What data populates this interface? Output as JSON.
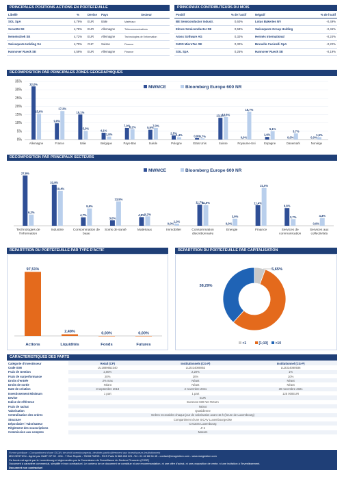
{
  "positions": {
    "title": "PRINCIPALES POSITIONS ACTIONS EN PORTEFEUILLE",
    "headers": [
      "Libellé",
      "%",
      "Devise",
      "Pays",
      "Secteur"
    ],
    "rows": [
      {
        "name": "SOL SpA",
        "pct": "4,79%",
        "cur": "EUR",
        "country": "Italie",
        "sector": "Matériaux"
      },
      {
        "name": "Scout24 SE",
        "pct": "4,78%",
        "cur": "EUR",
        "country": "Allemagne",
        "sector": "Télécommunications"
      },
      {
        "name": "Nemetschek SE",
        "pct": "4,72%",
        "cur": "EUR",
        "country": "Allemagne",
        "sector": "Technologies de l'information"
      },
      {
        "name": "Swissquote Holding SA",
        "pct": "4,70%",
        "cur": "CHF",
        "country": "Suisse",
        "sector": "Finance"
      },
      {
        "name": "Hannover Rueck SE",
        "pct": "4,59%",
        "cur": "EUR",
        "country": "Allemagne",
        "sector": "Finance"
      }
    ]
  },
  "contributors": {
    "title": "PRINCIPAUX CONTRIBUTEURS DU MOIS",
    "headers": [
      "Positif",
      "% de l'actif",
      "Négatif",
      "% de l'actif"
    ],
    "rows": [
      {
        "pos": "BE Semiconductor Industr.",
        "pos_pct": "0,60%",
        "neg": "Lotus Bakeries NV",
        "neg_pct": "-0,49%"
      },
      {
        "pos": "Elmos Semiconductor SE",
        "pos_pct": "0,58%",
        "neg": "Swissquote Group Holding",
        "neg_pct": "-0,46%"
      },
      {
        "pos": "Atoss Software AG",
        "pos_pct": "0,32%",
        "neg": "Hermès International",
        "neg_pct": "-0,24%"
      },
      {
        "pos": "SUSS MicroTec SE",
        "pos_pct": "0,32%",
        "neg": "Brunello Cucinelli SpA",
        "neg_pct": "-0,22%"
      },
      {
        "pos": "SOL SpA",
        "pos_pct": "0,25%",
        "neg": "Hannover Rueck SE",
        "neg_pct": "-0,19%"
      }
    ]
  },
  "geo": {
    "title": "DECOMPOSITION PAR PRINCIPALES ZONES GEOGRAPHIQUES"
  },
  "sect": {
    "title": "DECOMPOSITION PAR PRINCIPAUX SECTEURS"
  },
  "actif": {
    "title": "REPARTITION DU PORTEFEUILLE PAR TYPE D'ACTIF"
  },
  "capi": {
    "title": "REPARTITION DU PORTEFEUILLE PAR CAPITALISATION"
  },
  "chart_data": [
    {
      "type": "bar",
      "categories": [
        "Allemagne",
        "France",
        "Italie",
        "Belgique",
        "Pays-Bas",
        "Suède",
        "Pologne",
        "Etats Unis",
        "Suisse",
        "Royaume-Uni",
        "Espagne",
        "Danemark",
        "Norvège"
      ],
      "series": [
        {
          "name": "MWMCE",
          "values": [
            32.0,
            9.8,
            15.1,
            4.1,
            7.0,
            5.9,
            2.5,
            0.9,
            13.1,
            0.0,
            1.6,
            0.0,
            0.0
          ],
          "color": "#2f4f96"
        },
        {
          "name": "Bloomberg Europe 600 NR",
          "values": [
            15.6,
            17.2,
            5.3,
            1.8,
            6.2,
            7.0,
            1.4,
            0.7,
            13.6,
            16.7,
            5.1,
            3.7,
            1.5
          ],
          "color": "#b9cfec"
        }
      ],
      "labels_mwmce": [
        "32,0%",
        "9,8%",
        "15,1%",
        "4,1%",
        "7,0%",
        "5,9%",
        "2,5%",
        "0,9%",
        "13,1%",
        "0,0%",
        "1,6%",
        "0,0%",
        "0,0%"
      ],
      "labels_bench": [
        "15,6%",
        "17,2%",
        "5,3%",
        "1,8%",
        "6,2%",
        "7,0%",
        "1,4%",
        "0,7%",
        "13,6%",
        "16,7%",
        "5,1%",
        "3,7%",
        "1,5%"
      ],
      "yticks": [
        "35%",
        "30%",
        "25%",
        "20%",
        "15%",
        "10%",
        "5%",
        "0%"
      ],
      "ylim": [
        0,
        35
      ]
    },
    {
      "type": "bar",
      "categories": [
        "Technologies de l'information",
        "Industrie",
        "Consommation de base",
        "Soins de santé",
        "Matériaux",
        "Immobilier",
        "Consommation discrétionnaire",
        "Energie",
        "Finance",
        "Services de communication",
        "Services aux collectivités"
      ],
      "series": [
        {
          "name": "MWMCE",
          "values": [
            27.9,
            22.8,
            4.7,
            3.0,
            4.8,
            0.0,
            11.7,
            0.0,
            11.4,
            9.8,
            0.0
          ],
          "color": "#2f4f96"
        },
        {
          "name": "Bloomberg Europe 600 NR",
          "values": [
            6.2,
            19.4,
            9.6,
            13.5,
            5.2,
            1.2,
            11.5,
            3.9,
            21.0,
            3.7,
            4.3
          ],
          "color": "#b9cfec"
        }
      ],
      "labels_mwmce": [
        "27,9%",
        "22,8%",
        "4,7%",
        "3,0%",
        "4,8%",
        "0,0%",
        "11,7%",
        "0,0%",
        "11,4%",
        "9,8%",
        "0,0%"
      ],
      "labels_bench": [
        "6,2%",
        "19,4%",
        "9,6%",
        "13,5%",
        "5,2%",
        "1,2%",
        "11,5%",
        "3,9%",
        "21,0%",
        "3,7%",
        "4,3%"
      ],
      "ylim": [
        0,
        30
      ]
    },
    {
      "type": "bar",
      "categories": [
        "Actions",
        "Liquidités",
        "Fonds",
        "Futures"
      ],
      "values": [
        97.51,
        2.49,
        0.0,
        0.0
      ],
      "labels": [
        "97,51%",
        "2,49%",
        "0,00%",
        "0,00%"
      ],
      "color": "#e46a1c",
      "ylim": [
        0,
        100
      ]
    },
    {
      "type": "pie",
      "donut": true,
      "categories": [
        "<1",
        "[1;10]",
        ">10"
      ],
      "values": [
        5.65,
        56.06,
        38.29
      ],
      "labels": [
        "5,65%",
        "56,06%",
        "38,29%"
      ],
      "colors": [
        "#c9c9c9",
        "#e46a1c",
        "#1f63b5"
      ]
    }
  ],
  "characteristics": {
    "title": "CARACTERISTIQUES DES PARTS",
    "columns": [
      "Retail (CP)",
      "Institutionnels (CG-P)",
      "Institutionnel (CG-P)"
    ],
    "rows": [
      {
        "label": "Catégorie d'investisseur",
        "vals": [
          "Retail (CP)",
          "Institutionnels (CG-P)",
          "Institutionnel (CG-P)"
        ]
      },
      {
        "label": "Code ISIN",
        "vals": [
          "LU1889652340",
          "LU2314080852",
          "LU2314080936"
        ]
      },
      {
        "label": "Frais de Gestion",
        "vals": [
          "2,00%",
          "2,20%",
          "1%"
        ]
      },
      {
        "label": "Frais de surperformance",
        "vals": [
          "20%",
          "20%",
          "10%"
        ]
      },
      {
        "label": "Droits d'entrée",
        "vals": [
          "2% max",
          "Néant",
          "Néant"
        ]
      },
      {
        "label": "Droits de sortie",
        "vals": [
          "Néant",
          "Néant",
          "Néant"
        ]
      },
      {
        "label": "Date de création",
        "vals": [
          "3 septembre 2018",
          "2 novembre 2021",
          "30 novembre 2021"
        ]
      },
      {
        "label": "Investissement Minimum",
        "vals": [
          "1 part",
          "1 part",
          "125 000EUR"
        ]
      },
      {
        "label": "Devise",
        "span": "EUR"
      },
      {
        "label": "Indice de référence",
        "span": "Euronext 600 Net Return"
      },
      {
        "label": "Frais de rachat",
        "span": "Néant"
      },
      {
        "label": "Valorisation",
        "span": "Quotidienne"
      },
      {
        "label": "Centralisation des ordres",
        "span": "Ordres recevables chaque jour de valorisation avant 15 h (heure de Luxembourg)"
      },
      {
        "label": "Structure",
        "span": "Compartiment d'une SICAV Luxembourgeoise"
      },
      {
        "label": "Dépositaire / Valorisateur",
        "span": "CACEIS Luxembourg"
      },
      {
        "label": "Règlement des souscriptions",
        "span": "J+2"
      },
      {
        "label": "Commission aux comptes",
        "span": "Mazars"
      }
    ]
  },
  "footer": {
    "legal_form": "Forme juridique : Compartiment d'une SICAV de droit luxembourgeois, destinés particulièrement aux investisseurs institutionnels",
    "line1": "MW GESTION - Agréé par l'AMF GP 92 - 004 - 7 Rue Royale - 75008 PARIS - RCS Paris B 388 455 221 -Tel : 01 42 86 54 45 - contact@mwgestion.com - www.mwgestion.com",
    "line2": "Ce fonds est agréé par le Luxembourg et réglementés par la Commission de Surveillance du Secteur Financier (CSSF)",
    "line3": "Document à caractère commercial, simplifié et non contractuel. Le contenu de ce document ne constitue ni une recommandation, ni une offre d'achat, ni une proposition de vente, ni une incitation à l'investissement.",
    "line4": "Document non contractuel"
  }
}
